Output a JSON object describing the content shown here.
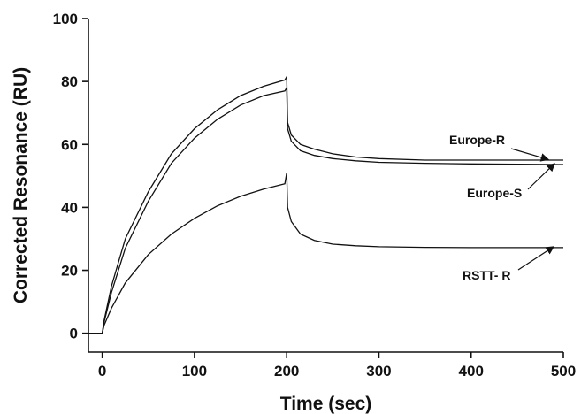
{
  "chart_data": {
    "type": "line",
    "xlabel": "Time (sec)",
    "ylabel": "Corrected Resonance (RU)",
    "xlim": [
      -15,
      500
    ],
    "ylim": [
      -6,
      100
    ],
    "xticks": [
      0,
      100,
      200,
      300,
      400,
      500
    ],
    "yticks": [
      0,
      20,
      40,
      60,
      80,
      100
    ],
    "grid": false,
    "legend": "none",
    "line_color": "#111111",
    "series": [
      {
        "name": "Europe-R",
        "x": [
          -15,
          0,
          2,
          10,
          25,
          50,
          75,
          100,
          125,
          150,
          175,
          198,
          200,
          201,
          205,
          215,
          230,
          250,
          275,
          300,
          350,
          400,
          450,
          500
        ],
        "y": [
          0,
          0,
          4,
          15,
          30,
          45,
          57,
          65,
          71,
          75.5,
          78.5,
          80.5,
          81.5,
          67,
          63,
          60,
          58.5,
          57,
          56,
          55.5,
          55,
          55,
          55,
          55
        ]
      },
      {
        "name": "Europe-S",
        "x": [
          -15,
          0,
          2,
          10,
          25,
          50,
          75,
          100,
          125,
          150,
          175,
          198,
          200,
          201,
          205,
          215,
          230,
          250,
          275,
          300,
          350,
          400,
          450,
          500
        ],
        "y": [
          0,
          0,
          3.5,
          13,
          27,
          42,
          54,
          62,
          68,
          72.5,
          75.5,
          77,
          78,
          65,
          61,
          58,
          56.5,
          55.5,
          54.8,
          54.3,
          54,
          53.8,
          53.7,
          53.6
        ]
      },
      {
        "name": "RSTT- R",
        "x": [
          -15,
          0,
          2,
          10,
          25,
          50,
          75,
          100,
          125,
          150,
          175,
          198,
          200,
          201,
          205,
          215,
          230,
          250,
          275,
          300,
          350,
          400,
          450,
          500
        ],
        "y": [
          0,
          0,
          2.5,
          8,
          16,
          25,
          31.5,
          36.5,
          40.5,
          43.5,
          45.8,
          47.5,
          51,
          40,
          35.5,
          31.5,
          29.5,
          28.3,
          27.8,
          27.5,
          27.3,
          27.2,
          27.2,
          27.2
        ]
      }
    ],
    "annotations": [
      {
        "text": "Europe-R",
        "series": "Europe-R"
      },
      {
        "text": "Europe-S",
        "series": "Europe-S"
      },
      {
        "text": "RSTT- R",
        "series": "RSTT- R"
      }
    ]
  }
}
